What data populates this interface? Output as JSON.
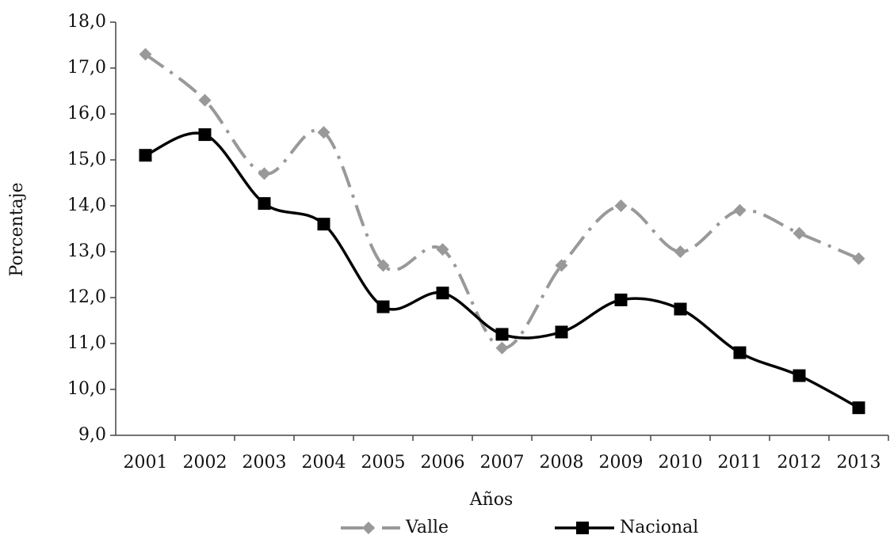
{
  "chart_data": {
    "type": "line",
    "x_label": "Años",
    "y_label": "Porcentaje",
    "categories": [
      "2001",
      "2002",
      "2003",
      "2004",
      "2005",
      "2006",
      "2007",
      "2008",
      "2009",
      "2010",
      "2011",
      "2012",
      "2013"
    ],
    "series": [
      {
        "name": "Valle",
        "color": "#999999",
        "marker": "diamond",
        "dash": "dash-dot",
        "values": [
          17.3,
          16.3,
          14.7,
          15.6,
          12.7,
          13.05,
          10.9,
          12.7,
          14.0,
          13.0,
          13.9,
          13.4,
          12.85
        ]
      },
      {
        "name": "Nacional",
        "color": "#000000",
        "marker": "square",
        "dash": "solid",
        "values": [
          15.1,
          15.55,
          14.05,
          13.6,
          11.8,
          12.1,
          11.2,
          11.25,
          11.95,
          11.75,
          10.8,
          10.3,
          9.6
        ]
      }
    ],
    "ylim": [
      9,
      18
    ],
    "yticks": [
      {
        "value": 9,
        "label": "9,0"
      },
      {
        "value": 10,
        "label": "10,0"
      },
      {
        "value": 11,
        "label": "11,0"
      },
      {
        "value": 12,
        "label": "12,0"
      },
      {
        "value": 13,
        "label": "13,0"
      },
      {
        "value": 14,
        "label": "14,0"
      },
      {
        "value": 15,
        "label": "15,0"
      },
      {
        "value": 16,
        "label": "16,0"
      },
      {
        "value": 17,
        "label": "17,0"
      },
      {
        "value": 18,
        "label": "18,0"
      }
    ],
    "legend": "bottom"
  }
}
